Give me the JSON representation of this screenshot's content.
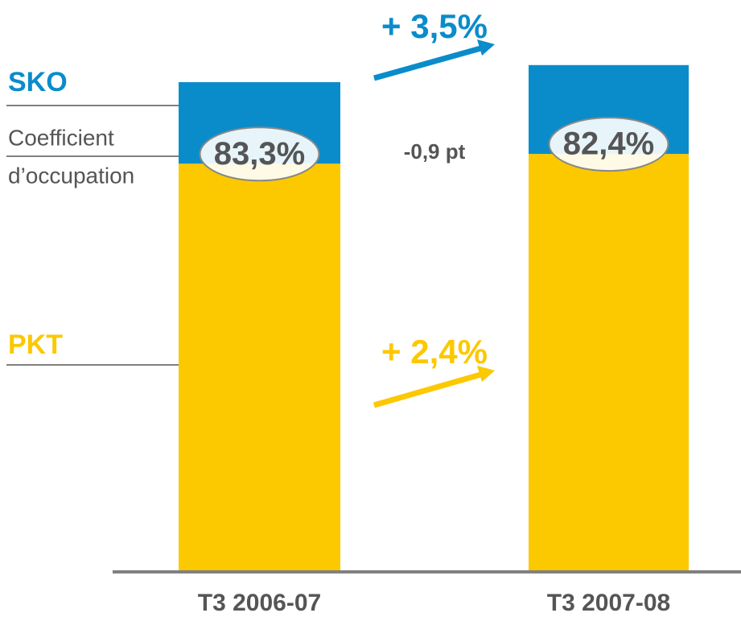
{
  "chart_data": {
    "type": "stacked_bar",
    "categories": [
      "T3 2006-07",
      "T3 2007-08"
    ],
    "series": [
      {
        "name": "PKT",
        "color": "#fcc800",
        "values": [
          83.3,
          85.3
        ]
      },
      {
        "name": "SKO",
        "color": "#0a8ccb",
        "values": [
          16.7,
          18.2
        ]
      }
    ],
    "legend_extra": [
      "Coefficient",
      "d’occupation"
    ],
    "ratio_labels": [
      "83,3%",
      "82,4%"
    ],
    "ratio_change": "-0,9 pt",
    "growth_labels": {
      "SKO": "+ 3,5%",
      "PKT": "+ 2,4%"
    }
  }
}
